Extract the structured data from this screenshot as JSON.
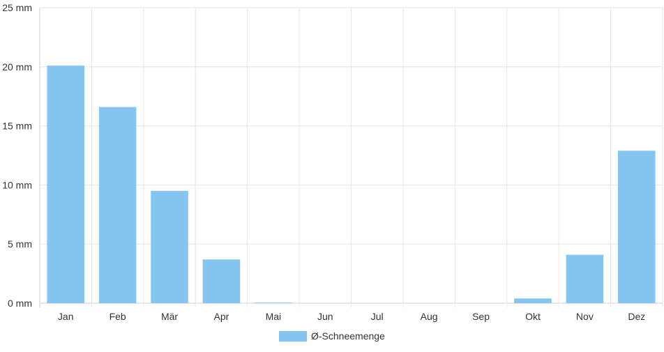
{
  "chart_data": {
    "type": "bar",
    "categories": [
      "Jan",
      "Feb",
      "Mär",
      "Apr",
      "Mai",
      "Jun",
      "Jul",
      "Aug",
      "Sep",
      "Okt",
      "Nov",
      "Dez"
    ],
    "series": [
      {
        "name": "Ø-Schneemenge",
        "values": [
          20.1,
          16.6,
          9.5,
          3.7,
          0.05,
          0,
          0,
          0,
          0,
          0.4,
          4.1,
          12.9
        ]
      }
    ],
    "ylim": [
      0,
      25
    ],
    "y_ticks": [
      0,
      5,
      10,
      15,
      20,
      25
    ],
    "y_unit": "mm",
    "grid": true,
    "legend_position": "bottom",
    "colors": {
      "bar": "#87c5f1",
      "grid": "#e6e6e6",
      "axis": "#cccccc"
    }
  }
}
